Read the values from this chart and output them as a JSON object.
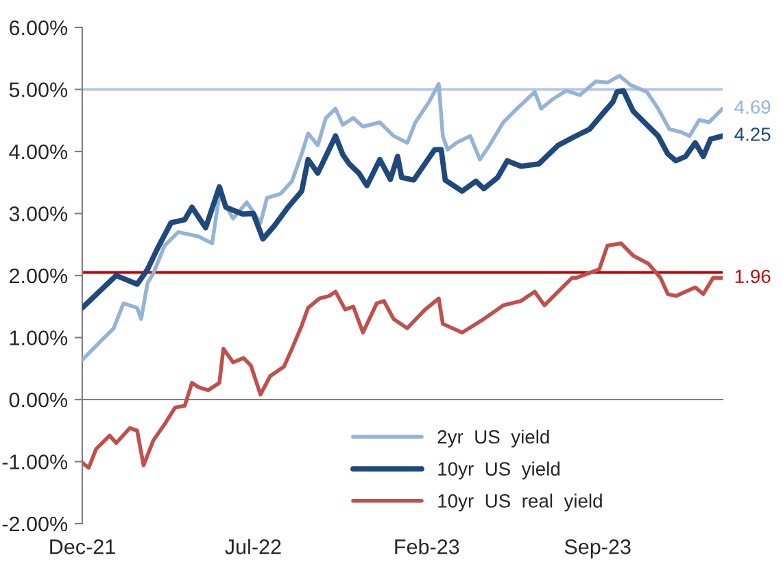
{
  "chart_data": {
    "type": "line",
    "xlim": [
      "2021-12-01",
      "2024-02-03"
    ],
    "xticks": [
      {
        "value": "2021-12-01",
        "label": "Dec-21"
      },
      {
        "value": "2022-07-01",
        "label": "Jul-22"
      },
      {
        "value": "2023-02-01",
        "label": "Feb-23"
      },
      {
        "value": "2023-09-01",
        "label": "Sep-23"
      }
    ],
    "ylim": [
      -2,
      6
    ],
    "yticks": [
      {
        "value": -2,
        "label": "-2.00%"
      },
      {
        "value": -1,
        "label": "-1.00%"
      },
      {
        "value": 0,
        "label": "0.00%"
      },
      {
        "value": 1,
        "label": "1.00%"
      },
      {
        "value": 2,
        "label": "2.00%"
      },
      {
        "value": 3,
        "label": "3.00%"
      },
      {
        "value": 4,
        "label": "4.00%"
      },
      {
        "value": 5,
        "label": "5.00%"
      },
      {
        "value": 6,
        "label": "6.00%"
      }
    ],
    "grid": false,
    "legend": "bottom right",
    "marker": "none",
    "line_style": "solid",
    "ref_lines": [
      {
        "axis": "y",
        "value": 5.0,
        "color": "#b4c7e7"
      },
      {
        "axis": "y",
        "value": 2.05,
        "color": "#c00000"
      }
    ],
    "annotations": [
      {
        "text": "4.69",
        "x": "2024-02-03",
        "y": 4.69
      },
      {
        "text": "4.25",
        "x": "2024-02-03",
        "y": 4.25
      },
      {
        "text": "1.96",
        "x": "2024-02-03",
        "y": 1.96
      }
    ],
    "series": [
      {
        "name": "2yr  US  yield",
        "color": "#95b3d7",
        "x": [
          "2021-12-01",
          "2021-12-26",
          "2022-01-09",
          "2022-01-21",
          "2022-02-07",
          "2022-02-12",
          "2022-02-20",
          "2022-02-27",
          "2022-03-13",
          "2022-03-30",
          "2022-04-24",
          "2022-05-11",
          "2022-05-20",
          "2022-06-06",
          "2022-06-23",
          "2022-07-10",
          "2022-07-18",
          "2022-08-04",
          "2022-08-18",
          "2022-08-30",
          "2022-09-07",
          "2022-09-19",
          "2022-09-29",
          "2022-10-11",
          "2022-10-20",
          "2022-11-02",
          "2022-11-14",
          "2022-12-05",
          "2022-12-22",
          "2023-01-08",
          "2023-01-18",
          "2023-02-04",
          "2023-02-16",
          "2023-02-21",
          "2023-02-27",
          "2023-03-10",
          "2023-03-27",
          "2023-04-08",
          "2023-04-20",
          "2023-05-07",
          "2023-05-24",
          "2023-06-15",
          "2023-06-23",
          "2023-07-07",
          "2023-07-24",
          "2023-08-10",
          "2023-08-30",
          "2023-09-13",
          "2023-09-28",
          "2023-10-12",
          "2023-11-01",
          "2023-11-15",
          "2023-11-29",
          "2023-12-14",
          "2023-12-24",
          "2024-01-05",
          "2024-01-17",
          "2024-02-03"
        ],
        "values": [
          0.64,
          0.97,
          1.15,
          1.55,
          1.48,
          1.3,
          1.88,
          2.03,
          2.48,
          2.7,
          2.63,
          2.52,
          3.3,
          2.92,
          3.18,
          2.85,
          3.25,
          3.32,
          3.52,
          3.96,
          4.29,
          4.1,
          4.54,
          4.69,
          4.43,
          4.54,
          4.4,
          4.47,
          4.25,
          4.14,
          4.47,
          4.8,
          5.09,
          4.25,
          4.03,
          4.14,
          4.25,
          3.87,
          4.1,
          4.47,
          4.69,
          4.96,
          4.69,
          4.84,
          4.98,
          4.91,
          5.13,
          5.11,
          5.22,
          5.07,
          4.96,
          4.69,
          4.36,
          4.31,
          4.25,
          4.51,
          4.47,
          4.69
        ]
      },
      {
        "name": "10yr  US  yield",
        "color": "#1f497d",
        "x": [
          "2021-12-01",
          "2022-01-12",
          "2022-02-07",
          "2022-02-20",
          "2022-03-04",
          "2022-03-21",
          "2022-04-07",
          "2022-04-16",
          "2022-05-03",
          "2022-05-20",
          "2022-05-28",
          "2022-06-18",
          "2022-07-01",
          "2022-07-13",
          "2022-07-27",
          "2022-08-13",
          "2022-08-30",
          "2022-09-07",
          "2022-09-19",
          "2022-10-03",
          "2022-10-11",
          "2022-10-20",
          "2022-10-28",
          "2022-11-09",
          "2022-11-19",
          "2022-12-05",
          "2022-12-18",
          "2022-12-27",
          "2023-01-01",
          "2023-01-16",
          "2023-02-11",
          "2023-02-19",
          "2023-02-24",
          "2023-03-17",
          "2023-04-03",
          "2023-04-13",
          "2023-04-30",
          "2023-05-12",
          "2023-05-29",
          "2023-06-20",
          "2023-07-14",
          "2023-08-05",
          "2023-08-22",
          "2023-09-08",
          "2023-09-20",
          "2023-09-25",
          "2023-10-03",
          "2023-10-15",
          "2023-10-29",
          "2023-11-15",
          "2023-11-27",
          "2023-12-07",
          "2023-12-19",
          "2023-12-31",
          "2024-01-10",
          "2024-01-19",
          "2024-02-03"
        ],
        "values": [
          1.48,
          2.0,
          1.86,
          2.1,
          2.43,
          2.85,
          2.9,
          3.1,
          2.77,
          3.43,
          3.1,
          2.99,
          3.0,
          2.59,
          2.8,
          3.1,
          3.36,
          3.87,
          3.65,
          4.03,
          4.25,
          3.95,
          3.8,
          3.65,
          3.45,
          3.87,
          3.55,
          3.92,
          3.58,
          3.54,
          4.03,
          4.03,
          3.54,
          3.36,
          3.52,
          3.4,
          3.58,
          3.85,
          3.76,
          3.8,
          4.1,
          4.25,
          4.36,
          4.62,
          4.8,
          4.96,
          4.98,
          4.65,
          4.47,
          4.25,
          3.96,
          3.85,
          3.92,
          4.14,
          3.92,
          4.2,
          4.25
        ]
      },
      {
        "name": "10yr  US  real  yield",
        "color": "#c0504d",
        "x": [
          "2021-12-01",
          "2021-12-09",
          "2021-12-18",
          "2022-01-04",
          "2022-01-12",
          "2022-01-29",
          "2022-02-07",
          "2022-02-15",
          "2022-02-27",
          "2022-03-13",
          "2022-03-26",
          "2022-04-07",
          "2022-04-16",
          "2022-04-24",
          "2022-05-06",
          "2022-05-20",
          "2022-05-25",
          "2022-06-06",
          "2022-06-19",
          "2022-06-28",
          "2022-07-10",
          "2022-07-22",
          "2022-08-08",
          "2022-08-18",
          "2022-08-30",
          "2022-09-07",
          "2022-09-21",
          "2022-10-03",
          "2022-10-11",
          "2022-10-23",
          "2022-11-02",
          "2022-11-14",
          "2022-12-01",
          "2022-12-10",
          "2022-12-22",
          "2023-01-08",
          "2023-01-30",
          "2023-02-16",
          "2023-02-21",
          "2023-03-17",
          "2023-04-13",
          "2023-05-07",
          "2023-05-29",
          "2023-06-15",
          "2023-06-27",
          "2023-07-14",
          "2023-07-31",
          "2023-08-05",
          "2023-09-03",
          "2023-09-13",
          "2023-09-30",
          "2023-10-15",
          "2023-11-03",
          "2023-11-18",
          "2023-11-27",
          "2023-12-07",
          "2023-12-31",
          "2024-01-10",
          "2024-01-22",
          "2024-02-03"
        ],
        "values": [
          -1.02,
          -1.1,
          -0.8,
          -0.58,
          -0.7,
          -0.46,
          -0.5,
          -1.06,
          -0.66,
          -0.4,
          -0.13,
          -0.1,
          0.27,
          0.2,
          0.15,
          0.27,
          0.82,
          0.6,
          0.67,
          0.55,
          0.08,
          0.38,
          0.53,
          0.82,
          1.19,
          1.48,
          1.63,
          1.67,
          1.74,
          1.45,
          1.5,
          1.08,
          1.55,
          1.59,
          1.3,
          1.15,
          1.45,
          1.63,
          1.22,
          1.08,
          1.3,
          1.52,
          1.59,
          1.74,
          1.52,
          1.74,
          1.96,
          1.96,
          2.1,
          2.48,
          2.52,
          2.32,
          2.19,
          1.96,
          1.7,
          1.67,
          1.81,
          1.7,
          1.96,
          1.96
        ]
      }
    ]
  }
}
